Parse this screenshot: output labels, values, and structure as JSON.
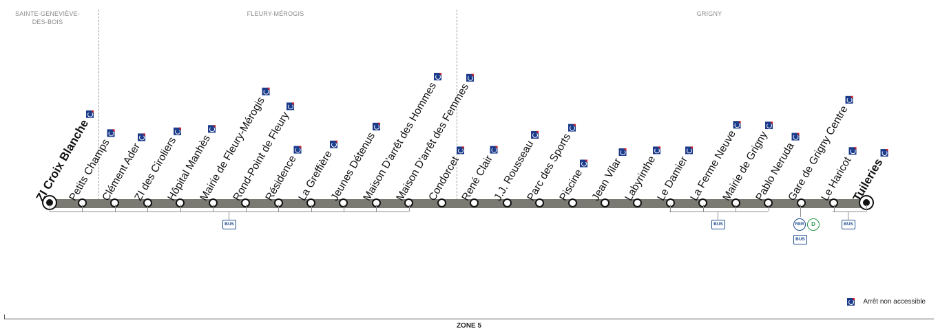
{
  "communes": [
    {
      "name": "SAINTE-GENEVIÈVE-\nDES-BOIS"
    },
    {
      "name": "FLEURY-MÉROGIS"
    },
    {
      "name": "GRIGNY"
    }
  ],
  "stops": [
    {
      "name": "ZI Croix Blanche",
      "bold": true,
      "terminus": true,
      "accessible": false
    },
    {
      "name": "Petits Champs",
      "accessible": false
    },
    {
      "name": "Clément Ader",
      "accessible": false
    },
    {
      "name": "ZI des Ciroliers",
      "accessible": false
    },
    {
      "name": "Hôpital Manhès",
      "accessible": false
    },
    {
      "name": "Mairie de Fleury-Mérogis",
      "accessible": false
    },
    {
      "name": "Rond-Point de Fleury",
      "accessible": false
    },
    {
      "name": "Résidence",
      "accessible": false
    },
    {
      "name": "La Greffière",
      "accessible": false
    },
    {
      "name": "Jeunes Détenus",
      "accessible": false
    },
    {
      "name": "Maison D'arrêt des Hommes",
      "accessible": false
    },
    {
      "name": "Maison D'arrêt des Femmes",
      "accessible": false
    },
    {
      "name": "Condorcet",
      "accessible": false
    },
    {
      "name": "René Clair",
      "accessible": false
    },
    {
      "name": "J.J. Rousseau",
      "accessible": false
    },
    {
      "name": "Parc des Sports",
      "accessible": false
    },
    {
      "name": "Piscine",
      "accessible": false
    },
    {
      "name": "Jean Vilar",
      "accessible": false
    },
    {
      "name": "Labyrinthe",
      "accessible": false
    },
    {
      "name": "Le Damier",
      "accessible": false
    },
    {
      "name": "La Ferme Neuve",
      "accessible": false
    },
    {
      "name": "Mairie de Grigny",
      "accessible": false
    },
    {
      "name": "Pablo Neruda",
      "accessible": false
    },
    {
      "name": "Gare de Grigny Centre",
      "accessible": false
    },
    {
      "name": "Le Haricot",
      "accessible": false
    },
    {
      "name": "Tuileries",
      "bold": true,
      "terminus": true,
      "accessible": false
    }
  ],
  "connections": {
    "bus_label": "BUS",
    "rer_label": "RER",
    "rer_line": "D"
  },
  "legend": {
    "label": "Arrêt non accessible"
  },
  "zone": {
    "label": "ZONE 5"
  },
  "colors": {
    "line": "#7a7a72",
    "wheelchair_icon": "#1a3a8a",
    "wheelchair_corner": "#d4202a",
    "bus": "#1a4a8f",
    "rer_d": "#2a9a4a"
  }
}
